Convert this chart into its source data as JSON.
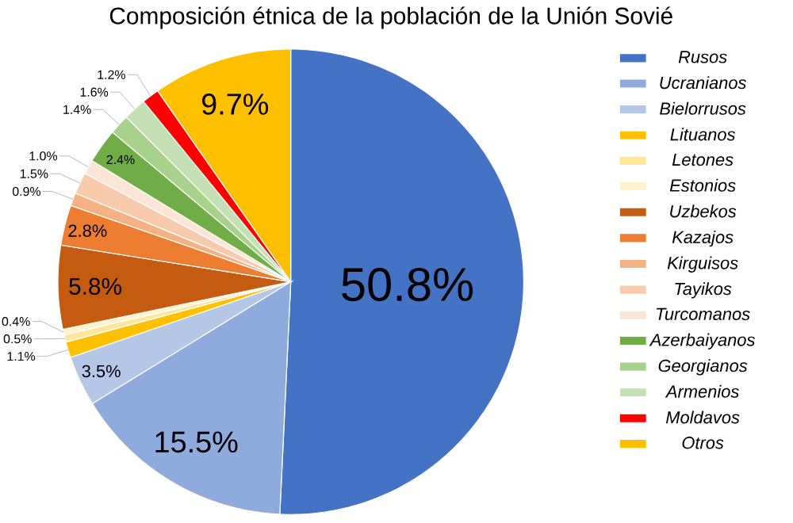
{
  "chart_data": {
    "type": "pie",
    "title": "Composición étnica de la población de la Unión Sovié",
    "categories": [
      "Rusos",
      "Ucranianos",
      "Bielorrusos",
      "Lituanos",
      "Letones",
      "Estonios",
      "Uzbekos",
      "Kazajos",
      "Kirguisos",
      "Tayikos",
      "Turcomanos",
      "Azerbaiyanos",
      "Georgianos",
      "Armenios",
      "Moldavos",
      "Otros"
    ],
    "values": [
      50.8,
      15.5,
      3.5,
      1.1,
      0.5,
      0.4,
      5.8,
      2.8,
      0.9,
      1.5,
      1.0,
      2.4,
      1.4,
      1.6,
      1.2,
      9.7
    ],
    "value_labels": [
      "50.8%",
      "15.5%",
      "3.5%",
      "1.1%",
      "0.5%",
      "0.4%",
      "5.8%",
      "2.8%",
      "0.9%",
      "1.5%",
      "1.0%",
      "2.4%",
      "1.4%",
      "1.6%",
      "1.2%",
      "9.7%"
    ],
    "colors": [
      "#4472c4",
      "#8faadc",
      "#b4c7e7",
      "#ffc000",
      "#ffe699",
      "#fff2cc",
      "#c55a11",
      "#ed7d31",
      "#f4b183",
      "#f8cbad",
      "#fbe5d6",
      "#70ad47",
      "#a9d18e",
      "#c5e0b4",
      "#ff0000",
      "#ffc000"
    ],
    "legend": "right"
  }
}
